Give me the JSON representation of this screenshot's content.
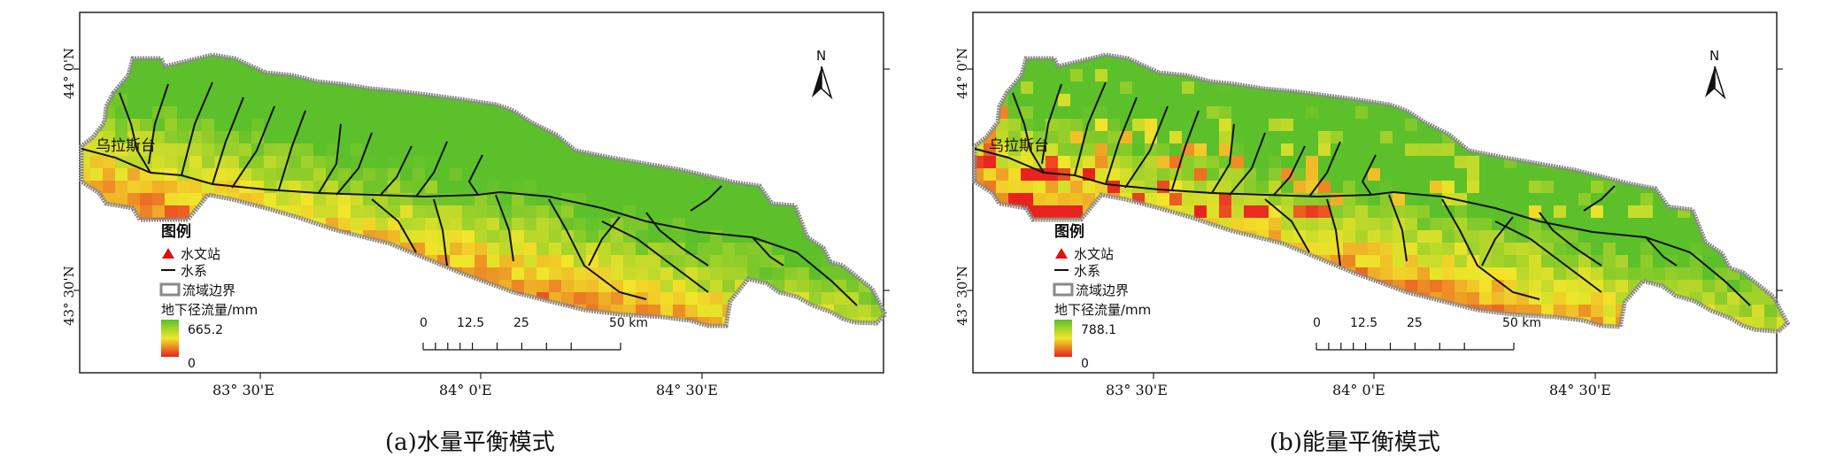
{
  "maps": [
    {
      "caption": "(a)水量平衡模式",
      "station_label": "乌拉斯台",
      "legend": {
        "title": "图例",
        "station": "水文站",
        "river": "水系",
        "boundary": "流域边界",
        "variable": "地下径流量/mm",
        "max": "665.2",
        "min": "0"
      },
      "scale": {
        "ticks": [
          "0",
          "12.5",
          "25",
          "50 km"
        ]
      },
      "north": "N",
      "x_ticks": [
        "83° 30'E",
        "84° 0'E",
        "84° 30'E"
      ],
      "y_ticks": [
        "44° 0'N",
        "43° 30'N"
      ]
    },
    {
      "caption": "(b)能量平衡模式",
      "station_label": "乌拉斯台",
      "legend": {
        "title": "图例",
        "station": "水文站",
        "river": "水系",
        "boundary": "流域边界",
        "variable": "地下径流量/mm",
        "max": "788.1",
        "min": "0"
      },
      "scale": {
        "ticks": [
          "0",
          "12.5",
          "25",
          "50 km"
        ]
      },
      "north": "N",
      "x_ticks": [
        "83° 30'E",
        "84° 0'E",
        "84° 30'E"
      ],
      "y_ticks": [
        "44° 0'N",
        "43° 30'N"
      ]
    }
  ],
  "colors": {
    "high": "#5cc02a",
    "mid": "#f2e62a",
    "low": "#e8231f",
    "boundary": "#8a8a8a",
    "river": "#111111",
    "station": "#e01010"
  }
}
